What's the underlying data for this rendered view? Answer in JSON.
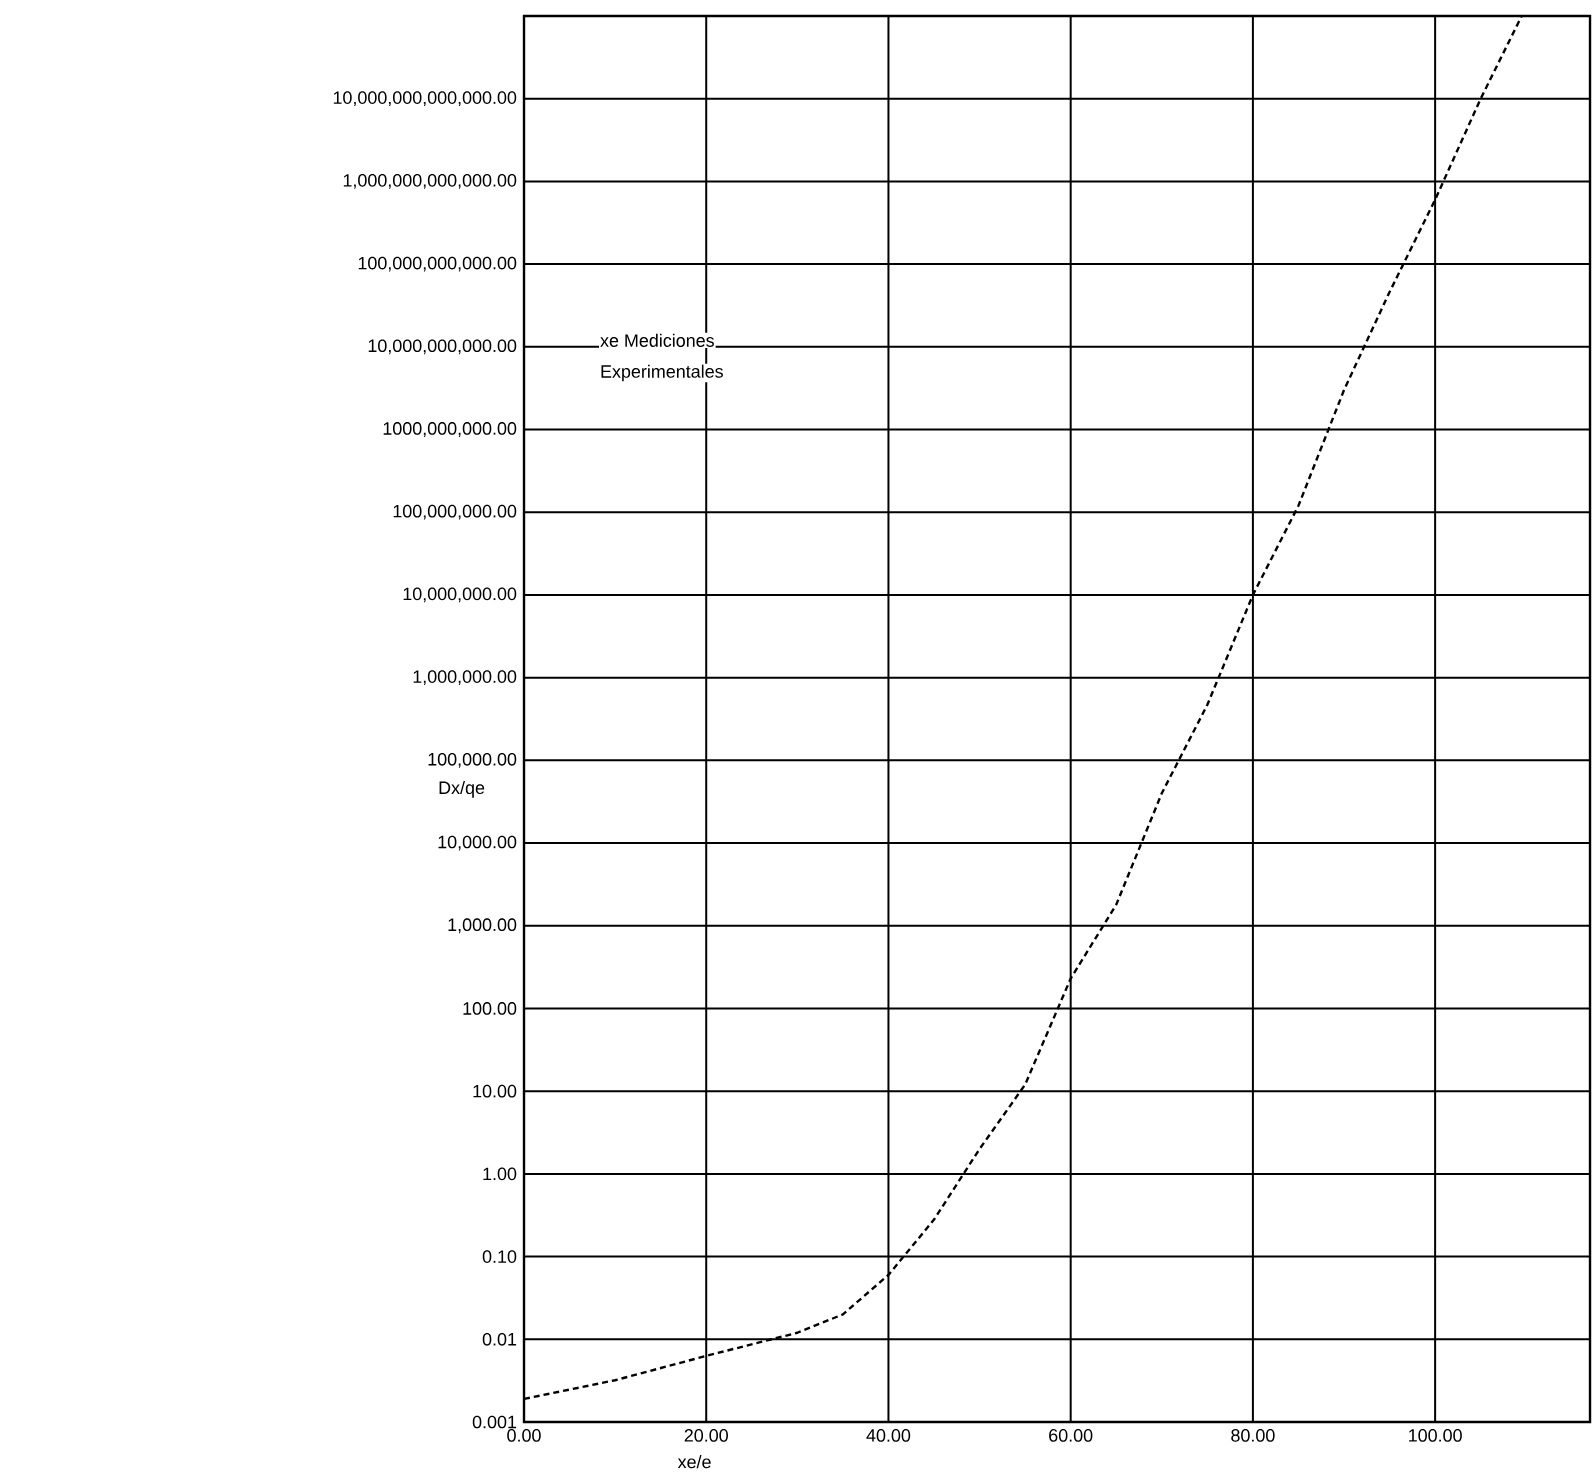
{
  "chart_data": {
    "type": "line",
    "xlabel": "xe/e",
    "ylabel": "Dx/qe",
    "annotations": [
      "xe Mediciones",
      "Experimentales"
    ],
    "x": [
      0,
      10,
      20,
      30,
      35,
      40,
      45,
      50,
      55,
      60,
      65,
      70,
      75,
      80,
      85,
      90,
      95,
      100,
      105,
      109.5
    ],
    "series": [
      {
        "color": "#000000",
        "values": [
          0.0019,
          0.0032,
          0.0063,
          0.012,
          0.02,
          0.06,
          0.28,
          2,
          12,
          230,
          1800,
          40000,
          470000,
          10000000,
          120000000,
          3000000000,
          46000000000,
          600000000000,
          10000000000000,
          100000000000000
        ]
      }
    ],
    "log": "y",
    "grid": true,
    "marker": "none",
    "line_style": "dashed",
    "xlim": [
      0,
      117
    ],
    "ylim": [
      0.001,
      100000000000000
    ],
    "xticks": [
      {
        "value": 0,
        "label": "0.00"
      },
      {
        "value": 20,
        "label": "20.00"
      },
      {
        "value": 40,
        "label": "40.00"
      },
      {
        "value": 60,
        "label": "60.00"
      },
      {
        "value": 80,
        "label": "80.00"
      },
      {
        "value": 100,
        "label": "100.00"
      }
    ],
    "yticks": [
      {
        "value": 0.001,
        "label": "0.001"
      },
      {
        "value": 0.01,
        "label": "0.01"
      },
      {
        "value": 0.1,
        "label": "0.10"
      },
      {
        "value": 1,
        "label": "1.00"
      },
      {
        "value": 10,
        "label": "10.00"
      },
      {
        "value": 100,
        "label": "100.00"
      },
      {
        "value": 1000,
        "label": "1,000.00"
      },
      {
        "value": 10000,
        "label": "10,000.00"
      },
      {
        "value": 100000,
        "label": "100,000.00"
      },
      {
        "value": 1000000,
        "label": "1,000,000.00"
      },
      {
        "value": 10000000,
        "label": "10,000,000.00"
      },
      {
        "value": 100000000,
        "label": "100,000,000.00"
      },
      {
        "value": 1000000000,
        "label": "1000,000,000.00"
      },
      {
        "value": 10000000000,
        "label": "10,000,000,000.00"
      },
      {
        "value": 100000000000,
        "label": "100,000,000,000.00"
      },
      {
        "value": 1000000000000,
        "label": "1,000,000,000,000.00"
      },
      {
        "value": 10000000000000,
        "label": "10,000,000,000,000.00"
      }
    ]
  }
}
